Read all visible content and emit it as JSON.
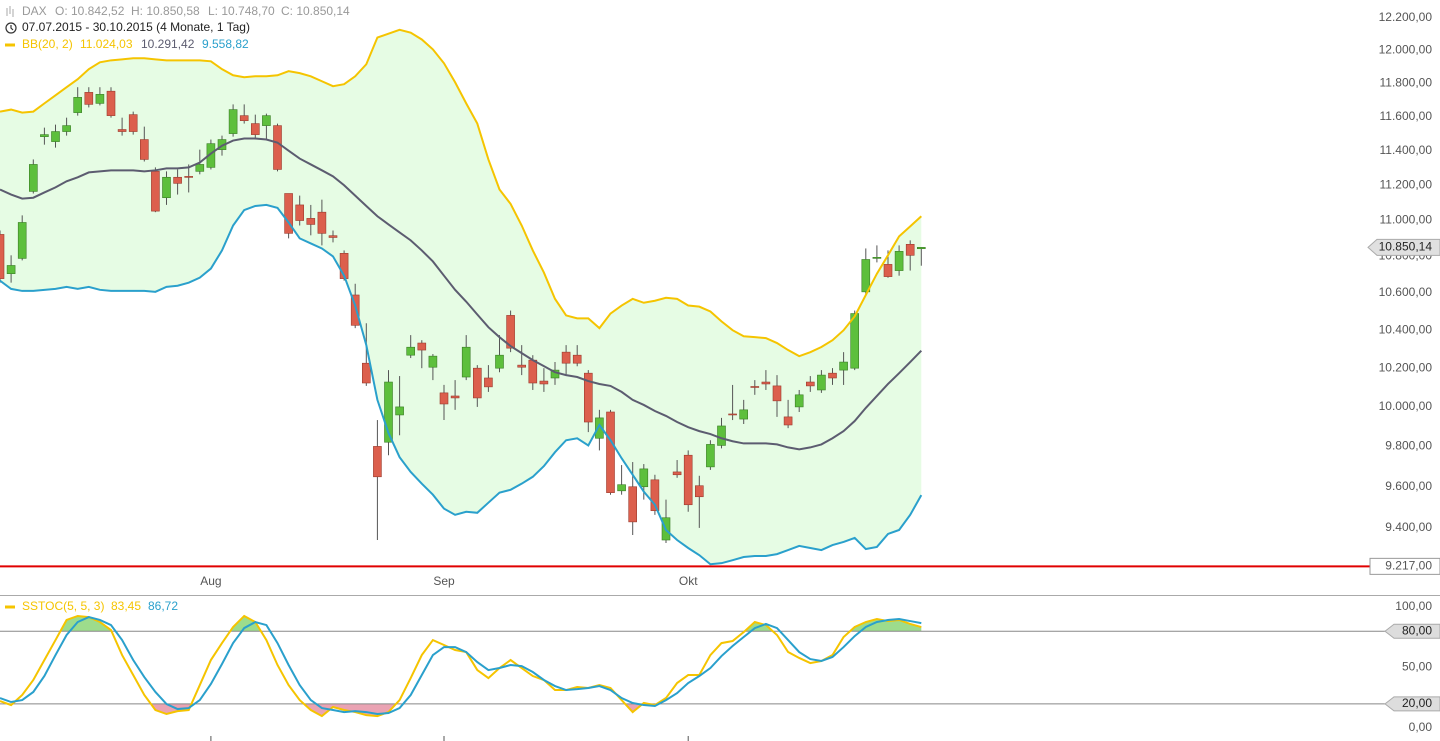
{
  "chart_data": [
    {
      "type": "candlestick",
      "title": "DAX",
      "ohlc_labels": [
        "O: 10.842,52",
        "H: 10.850,58",
        "L: 10.748,70",
        "C: 10.850,14"
      ],
      "subtitle": "07.07.2015 - 30.10.2015 (4 Monate, 1 Tag)",
      "categories": [
        null,
        null,
        null,
        null,
        null,
        null,
        null,
        null,
        null,
        null,
        null,
        null,
        null,
        null,
        null,
        null,
        null,
        null,
        null,
        "Aug",
        null,
        null,
        null,
        null,
        null,
        null,
        null,
        null,
        null,
        null,
        null,
        null,
        null,
        null,
        null,
        null,
        null,
        null,
        null,
        null,
        "Sep",
        null,
        null,
        null,
        null,
        null,
        null,
        null,
        null,
        null,
        null,
        null,
        null,
        null,
        null,
        null,
        null,
        null,
        null,
        null,
        null,
        null,
        "Okt",
        null,
        null,
        null,
        null,
        null,
        null,
        null,
        null,
        null,
        null,
        null,
        null,
        null,
        null,
        null,
        null,
        null,
        null,
        null,
        null,
        null
      ],
      "open": [
        10922,
        10705,
        10789,
        11165,
        11482,
        11453,
        11512,
        11624,
        11745,
        11679,
        11752,
        11524,
        11612,
        11465,
        11280,
        11129,
        11246,
        11251,
        11280,
        11303,
        11406,
        11500,
        11606,
        11559,
        11547,
        11547,
        11153,
        11088,
        11012,
        11047,
        10915,
        10817,
        10589,
        10226,
        9800,
        9821,
        9959,
        10268,
        10332,
        10205,
        10072,
        10056,
        10154,
        10200,
        10149,
        10200,
        10479,
        10216,
        10242,
        10133,
        10149,
        10284,
        10268,
        10174,
        9841,
        9974,
        9580,
        9600,
        9600,
        9634,
        9342,
        9673,
        9756,
        9605,
        9698,
        9805,
        9964,
        9938,
        10105,
        10128,
        10108,
        9949,
        10000,
        10128,
        10087,
        10174,
        10190,
        10200,
        10606,
        10789,
        10756,
        10722,
        10867,
        10842.52
      ],
      "high": [
        10944,
        10806,
        11029,
        11349,
        11535,
        11553,
        11594,
        11776,
        11776,
        11776,
        11776,
        11594,
        11630,
        11541,
        11303,
        11280,
        11291,
        11320,
        11406,
        11465,
        11488,
        11673,
        11673,
        11612,
        11618,
        11559,
        11153,
        11141,
        11088,
        11118,
        10944,
        10833,
        10650,
        10437,
        9933,
        10190,
        10159,
        10374,
        10347,
        10274,
        10113,
        10138,
        10374,
        10216,
        10216,
        10374,
        10505,
        10321,
        10268,
        10200,
        10232,
        10321,
        10321,
        10190,
        9985,
        9985,
        9707,
        9722,
        9712,
        9659,
        9537,
        9732,
        9780,
        9654,
        9831,
        9944,
        10113,
        10036,
        10138,
        10190,
        10164,
        10036,
        10087,
        10159,
        10190,
        10200,
        10284,
        10505,
        10844,
        10861,
        10833,
        10861,
        10889,
        10850.58
      ],
      "low": [
        10656,
        10656,
        10778,
        11153,
        11435,
        11418,
        11488,
        11606,
        11655,
        11667,
        11594,
        11488,
        11494,
        11337,
        11047,
        11088,
        11147,
        11159,
        11263,
        11291,
        11371,
        11482,
        11559,
        11465,
        11465,
        11280,
        10900,
        10972,
        10917,
        10861,
        10878,
        10667,
        10411,
        10108,
        9342,
        9756,
        9856,
        10253,
        10200,
        10138,
        9933,
        9985,
        10138,
        10000,
        10077,
        10179,
        10284,
        10164,
        10087,
        10077,
        10113,
        10164,
        10210,
        9872,
        9780,
        9561,
        9561,
        9366,
        9537,
        9463,
        9328,
        9644,
        9478,
        9400,
        9683,
        9790,
        9933,
        9913,
        10062,
        10087,
        9949,
        9892,
        9974,
        10077,
        10072,
        10113,
        10113,
        10190,
        10594,
        10767,
        10683,
        10694,
        10722,
        10748.7
      ],
      "close": [
        10678,
        10750,
        10989,
        11320,
        11494,
        11512,
        11547,
        11715,
        11673,
        11733,
        11606,
        11512,
        11512,
        11349,
        11053,
        11246,
        11211,
        11246,
        11320,
        11441,
        11465,
        11642,
        11576,
        11494,
        11606,
        11291,
        10928,
        11000,
        10978,
        10928,
        10905,
        10678,
        10426,
        10123,
        9649,
        10128,
        10000,
        10310,
        10295,
        10263,
        10015,
        10046,
        10310,
        10046,
        10103,
        10268,
        10305,
        10205,
        10123,
        10118,
        10190,
        10226,
        10226,
        9923,
        9944,
        9571,
        9610,
        9429,
        9688,
        9483,
        9449,
        9659,
        9512,
        9551,
        9810,
        9903,
        9960,
        9985,
        10100,
        10118,
        10031,
        9908,
        10062,
        10108,
        10164,
        10149,
        10232,
        10489,
        10783,
        10795,
        10689,
        10828,
        10806,
        10850.14
      ],
      "up_color": "#5dbf3c",
      "down_color": "#dc5f4d",
      "indicator": "BB(20, 2)",
      "indicator_color": "#f5c400",
      "band_fill": "#e6fce4",
      "series": [
        {
          "color": "#f5c400",
          "label": "11.024,03",
          "values": [
            11630,
            11642,
            11624,
            11630,
            11679,
            11727,
            11776,
            11824,
            11885,
            11927,
            11939,
            11945,
            11952,
            11952,
            11945,
            11939,
            11939,
            11939,
            11939,
            11933,
            11885,
            11848,
            11836,
            11842,
            11842,
            11848,
            11873,
            11861,
            11842,
            11812,
            11782,
            11794,
            11842,
            11915,
            12079,
            12103,
            12127,
            12109,
            12067,
            12006,
            11921,
            11806,
            11679,
            11559,
            11349,
            11176,
            11094,
            10972,
            10833,
            10711,
            10568,
            10479,
            10463,
            10463,
            10411,
            10489,
            10532,
            10568,
            10547,
            10558,
            10574,
            10568,
            10532,
            10526,
            10500,
            10447,
            10400,
            10368,
            10363,
            10358,
            10332,
            10295,
            10263,
            10284,
            10311,
            10347,
            10400,
            10474,
            10589,
            10705,
            10806,
            10911,
            10967,
            11024.03
          ]
        },
        {
          "color": "#5c5c70",
          "label": "10.291,42",
          "values": [
            11176,
            11147,
            11124,
            11129,
            11159,
            11188,
            11223,
            11246,
            11274,
            11280,
            11286,
            11286,
            11286,
            11280,
            11286,
            11297,
            11297,
            11303,
            11331,
            11383,
            11429,
            11459,
            11471,
            11471,
            11465,
            11447,
            11400,
            11354,
            11320,
            11286,
            11251,
            11200,
            11141,
            11082,
            11024,
            10978,
            10933,
            10889,
            10833,
            10772,
            10694,
            10617,
            10553,
            10484,
            10416,
            10363,
            10316,
            10279,
            10242,
            10211,
            10179,
            10164,
            10154,
            10133,
            10118,
            10108,
            10077,
            10036,
            10010,
            9979,
            9954,
            9923,
            9897,
            9877,
            9862,
            9841,
            9826,
            9815,
            9815,
            9815,
            9810,
            9795,
            9785,
            9795,
            9810,
            9841,
            9877,
            9928,
            9995,
            10056,
            10118,
            10174,
            10232,
            10291.42
          ]
        },
        {
          "color": "#2aa0cc",
          "label": "9.558,82",
          "values": [
            10667,
            10622,
            10611,
            10611,
            10617,
            10622,
            10633,
            10622,
            10633,
            10617,
            10611,
            10611,
            10611,
            10611,
            10606,
            10633,
            10639,
            10656,
            10683,
            10733,
            10833,
            10972,
            11059,
            11082,
            11088,
            11071,
            10989,
            10900,
            10872,
            10844,
            10800,
            10694,
            10532,
            10321,
            10036,
            9867,
            9746,
            9673,
            9615,
            9561,
            9493,
            9463,
            9478,
            9473,
            9522,
            9571,
            9585,
            9615,
            9649,
            9702,
            9771,
            9831,
            9841,
            9805,
            9908,
            9831,
            9741,
            9659,
            9576,
            9512,
            9390,
            9342,
            9304,
            9270,
            9227,
            9232,
            9246,
            9261,
            9266,
            9266,
            9275,
            9294,
            9314,
            9304,
            9294,
            9318,
            9333,
            9352,
            9299,
            9309,
            9371,
            9390,
            9463,
            9558.82
          ]
        }
      ],
      "log": true,
      "ylim": [
        9083,
        12313
      ],
      "yticks": [
        {
          "value": 9400,
          "label": "9.400,00"
        },
        {
          "value": 9600,
          "label": "9.600,00"
        },
        {
          "value": 9800,
          "label": "9.800,00"
        },
        {
          "value": 10000,
          "label": "10.000,00"
        },
        {
          "value": 10200,
          "label": "10.200,00"
        },
        {
          "value": 10400,
          "label": "10.400,00"
        },
        {
          "value": 10600,
          "label": "10.600,00"
        },
        {
          "value": 10800,
          "label": "10.800,00"
        },
        {
          "value": 11000,
          "label": "11.000,00"
        },
        {
          "value": 11200,
          "label": "11.200,00"
        },
        {
          "value": 11400,
          "label": "11.400,00"
        },
        {
          "value": 11600,
          "label": "11.600,00"
        },
        {
          "value": 11800,
          "label": "11.800,00"
        },
        {
          "value": 12000,
          "label": "12.000,00"
        },
        {
          "value": 12200,
          "label": "12.200,00"
        }
      ],
      "last_price_label": "10.850,14",
      "hline": {
        "value": 9217,
        "label": "9.217,00",
        "color": "#e00000"
      }
    },
    {
      "type": "line",
      "indicator": "SSTOC(5, 5, 3)",
      "series": [
        {
          "color": "#f5c400",
          "label": "83,45",
          "values": [
            22.3,
            19.0,
            27.3,
            39.7,
            56.2,
            72.7,
            89.3,
            92.6,
            91.7,
            87.6,
            81.0,
            60.3,
            43.8,
            27.3,
            14.9,
            11.6,
            14.0,
            14.9,
            35.5,
            56.2,
            70.2,
            83.5,
            92.6,
            87.6,
            72.7,
            52.1,
            35.5,
            23.1,
            14.9,
            9.9,
            17.4,
            14.9,
            13.2,
            10.7,
            9.9,
            13.2,
            23.1,
            41.3,
            60.3,
            72.7,
            68.6,
            64.5,
            62.8,
            47.9,
            41.3,
            49.6,
            56.2,
            49.6,
            43.0,
            39.7,
            31.4,
            31.4,
            33.9,
            33.1,
            35.5,
            33.1,
            23.1,
            13.2,
            20.7,
            19.0,
            24.8,
            37.2,
            43.8,
            43.8,
            60.3,
            70.2,
            71.9,
            79.3,
            87.6,
            85.1,
            76.9,
            62.8,
            57.9,
            53.7,
            55.4,
            60.3,
            75.2,
            83.5,
            87.6,
            90.1,
            88.4,
            89.3,
            86.0,
            83.45
          ]
        },
        {
          "color": "#2aa0cc",
          "label": "86,72",
          "values": [
            24.8,
            21.5,
            23.1,
            29.8,
            43.0,
            60.3,
            76.9,
            87.6,
            91.7,
            89.3,
            85.1,
            72.7,
            56.2,
            42.1,
            29.8,
            19.8,
            15.7,
            16.5,
            23.1,
            36.4,
            52.9,
            70.2,
            82.6,
            87.6,
            85.1,
            70.2,
            52.1,
            35.5,
            23.1,
            16.5,
            14.9,
            13.2,
            14.0,
            13.2,
            11.6,
            12.4,
            16.5,
            27.3,
            43.8,
            60.3,
            66.9,
            66.9,
            62.8,
            54.5,
            47.9,
            49.6,
            52.1,
            51.2,
            46.3,
            39.7,
            34.7,
            31.4,
            32.2,
            33.1,
            34.7,
            31.4,
            24.8,
            20.7,
            19.0,
            18.2,
            23.1,
            28.9,
            37.2,
            43.0,
            49.6,
            59.5,
            67.8,
            75.2,
            82.6,
            86.0,
            82.6,
            72.7,
            62.8,
            57.0,
            55.4,
            58.7,
            66.9,
            76.0,
            83.5,
            87.6,
            89.3,
            90.1,
            88.4,
            86.72
          ]
        }
      ],
      "ylim": [
        -10.7,
        109.1
      ],
      "yticks": [
        {
          "value": 0,
          "label": "0,00"
        },
        {
          "value": 50,
          "label": "50,00"
        },
        {
          "value": 100,
          "label": "100,00"
        }
      ],
      "levels": [
        {
          "value": 80,
          "label": "80,00"
        },
        {
          "value": 20,
          "label": "20,00"
        }
      ],
      "overbought_color": "#9ddc8c",
      "oversold_color": "#eaa3b3"
    }
  ]
}
